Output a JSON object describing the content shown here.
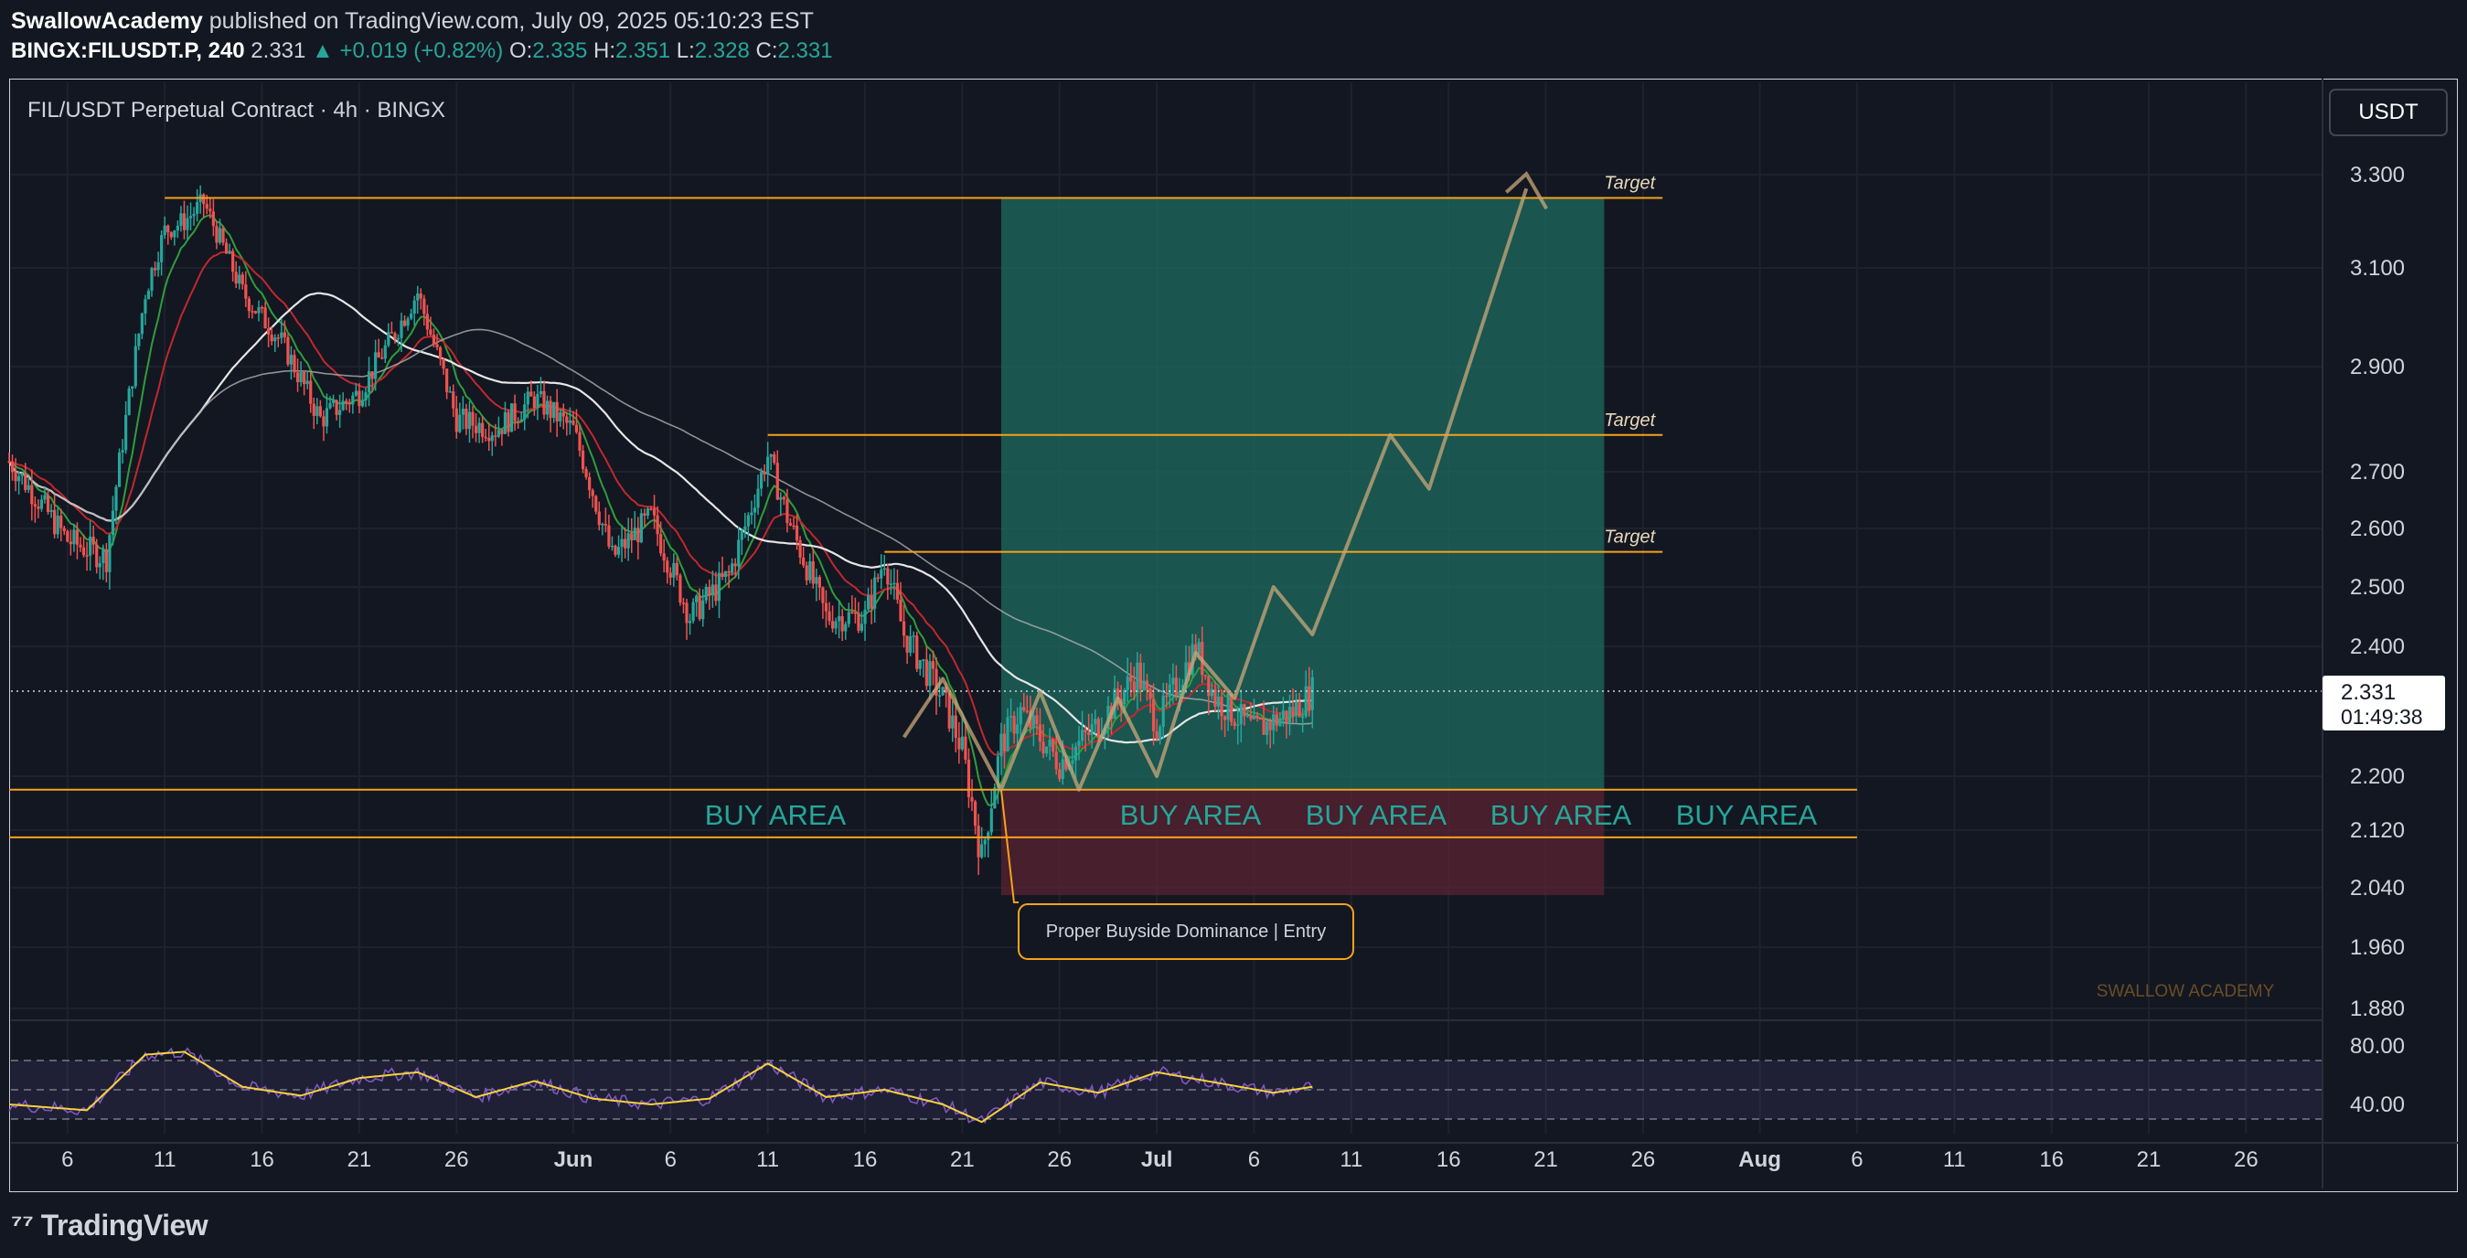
{
  "header": {
    "author": "SwallowAcademy",
    "published_text": "published on TradingView.com, July 09, 2025 05:10:23 EST",
    "symbol": "BINGX:FILUSDT.P, 240",
    "last": "2.331",
    "change": "+0.019 (+0.82%)",
    "open_label": "O:",
    "open": "2.335",
    "high_label": "H:",
    "high": "2.351",
    "low_label": "L:",
    "low": "2.328",
    "close_label": "C:",
    "close": "2.331"
  },
  "chart_title": "FIL/USDT Perpetual Contract · 4h · BINGX",
  "currency_button": "USDT",
  "price_tag": {
    "price": "2.331",
    "countdown": "01:49:38"
  },
  "watermark": "SWALLOW ACADEMY",
  "footer": {
    "logo_text": "TradingView"
  },
  "colors": {
    "background": "#131722",
    "up": "#26a69a",
    "down": "#ef5350",
    "level_line": "#f7a21b",
    "profit_zone": "#1e6b5f",
    "loss_zone": "#5a2332",
    "rsi_line": "#7e57c2",
    "rsi_signal": "#f5d23b",
    "ema_fast": "#2e9e3a",
    "ema_mid": "#c0282e",
    "ma_white": "#e6e6e6"
  },
  "chart_data": {
    "type": "candlestick",
    "symbol": "FIL/USDT",
    "timeframe": "4h",
    "y_axis_ticks": [
      "3.300",
      "3.100",
      "2.900",
      "2.700",
      "2.600",
      "2.500",
      "2.400",
      "2.200",
      "2.120",
      "2.040",
      "1.960",
      "1.880"
    ],
    "y_range": [
      1.84,
      3.43
    ],
    "x_axis_ticks": [
      "6",
      "11",
      "16",
      "21",
      "26",
      "Jun",
      "6",
      "11",
      "16",
      "21",
      "26",
      "Jul",
      "6",
      "11",
      "16",
      "21",
      "26",
      "Aug",
      "6",
      "11",
      "16",
      "21",
      "26"
    ],
    "x_range_days": [
      "May 3, 2025",
      "Aug 30, 2025"
    ],
    "last_price": 2.331,
    "price_series_approx": [
      [
        "May 3",
        2.72
      ],
      [
        "May 6",
        2.58
      ],
      [
        "May 8",
        2.55
      ],
      [
        "May 9",
        2.8
      ],
      [
        "May 10",
        3.05
      ],
      [
        "May 11",
        3.18
      ],
      [
        "May 12",
        3.2
      ],
      [
        "May 13",
        3.24
      ],
      [
        "May 15",
        3.05
      ],
      [
        "May 17",
        2.95
      ],
      [
        "May 19",
        2.8
      ],
      [
        "May 21",
        2.85
      ],
      [
        "May 23",
        2.98
      ],
      [
        "May 24",
        3.05
      ],
      [
        "May 26",
        2.8
      ],
      [
        "May 28",
        2.78
      ],
      [
        "May 30",
        2.84
      ],
      [
        "Jun 1",
        2.78
      ],
      [
        "Jun 3",
        2.55
      ],
      [
        "Jun 5",
        2.62
      ],
      [
        "Jun 7",
        2.45
      ],
      [
        "Jun 9",
        2.52
      ],
      [
        "Jun 10",
        2.62
      ],
      [
        "Jun 11",
        2.73
      ],
      [
        "Jun 12",
        2.62
      ],
      [
        "Jun 14",
        2.45
      ],
      [
        "Jun 16",
        2.45
      ],
      [
        "Jun 17",
        2.55
      ],
      [
        "Jun 18",
        2.42
      ],
      [
        "Jun 20",
        2.32
      ],
      [
        "Jun 21",
        2.24
      ],
      [
        "Jun 22",
        2.08
      ],
      [
        "Jun 23",
        2.25
      ],
      [
        "Jun 24",
        2.3
      ],
      [
        "Jun 26",
        2.22
      ],
      [
        "Jun 28",
        2.28
      ],
      [
        "Jun 30",
        2.36
      ],
      [
        "Jul 1",
        2.28
      ],
      [
        "Jul 3",
        2.4
      ],
      [
        "Jul 4",
        2.32
      ],
      [
        "Jul 6",
        2.27
      ],
      [
        "Jul 8",
        2.3
      ],
      [
        "Jul 9",
        2.331
      ]
    ],
    "levels": [
      {
        "label": "Target",
        "price": 3.25
      },
      {
        "label": "Target",
        "price": 2.77
      },
      {
        "label": "Target",
        "price": 2.56
      },
      {
        "label": "",
        "price": 2.18
      },
      {
        "label": "",
        "price": 2.11
      }
    ],
    "buy_area_labels": [
      "BUY AREA",
      "BUY AREA",
      "BUY AREA",
      "BUY AREA",
      "BUY AREA"
    ],
    "position": {
      "entry": 2.18,
      "target": 3.25,
      "stop": 2.03,
      "start": "Jun 23",
      "end": "Jul 24"
    },
    "projection_path": [
      [
        "Jun 18",
        2.26
      ],
      [
        "Jun 20",
        2.35
      ],
      [
        "Jun 23",
        2.18
      ],
      [
        "Jun 25",
        2.33
      ],
      [
        "Jun 27",
        2.18
      ],
      [
        "Jun 29",
        2.32
      ],
      [
        "Jul 1",
        2.2
      ],
      [
        "Jul 3",
        2.39
      ],
      [
        "Jul 5",
        2.32
      ],
      [
        "Jul 7",
        2.5
      ],
      [
        "Jul 9",
        2.42
      ],
      [
        "Jul 13",
        2.77
      ],
      [
        "Jul 15",
        2.67
      ],
      [
        "Jul 20",
        3.33
      ]
    ],
    "annotation": "Proper Buyside Dominance | Entry",
    "rsi": {
      "ticks": [
        "80.00",
        "40.00"
      ],
      "range": [
        20,
        90
      ],
      "band": [
        30,
        70
      ],
      "values_approx": [
        [
          "May 3",
          40
        ],
        [
          "May 7",
          36
        ],
        [
          "May 10",
          74
        ],
        [
          "May 12",
          76
        ],
        [
          "May 15",
          52
        ],
        [
          "May 18",
          46
        ],
        [
          "May 21",
          58
        ],
        [
          "May 24",
          62
        ],
        [
          "May 27",
          45
        ],
        [
          "May 30",
          56
        ],
        [
          "Jun 2",
          44
        ],
        [
          "Jun 5",
          40
        ],
        [
          "Jun 8",
          44
        ],
        [
          "Jun 11",
          68
        ],
        [
          "Jun 14",
          45
        ],
        [
          "Jun 17",
          50
        ],
        [
          "Jun 20",
          40
        ],
        [
          "Jun 22",
          28
        ],
        [
          "Jun 25",
          55
        ],
        [
          "Jun 28",
          48
        ],
        [
          "Jul 1",
          62
        ],
        [
          "Jul 4",
          55
        ],
        [
          "Jul 7",
          48
        ],
        [
          "Jul 9",
          52
        ]
      ]
    }
  }
}
